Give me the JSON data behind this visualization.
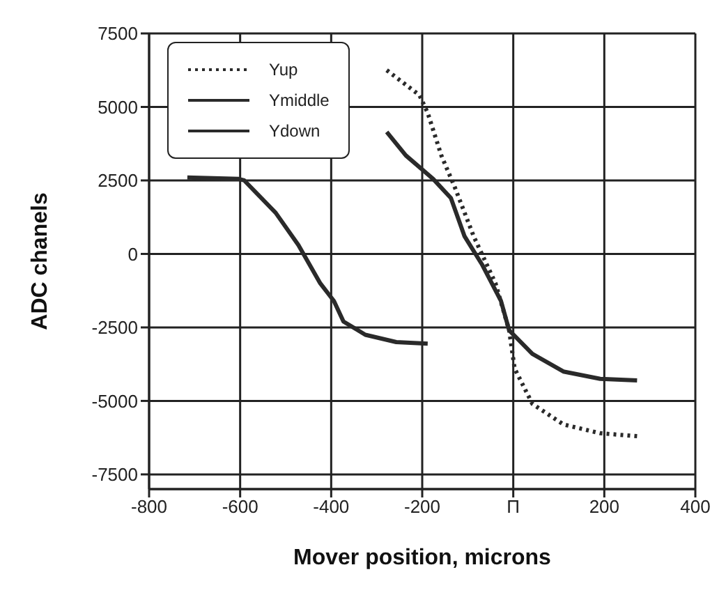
{
  "chart_data": {
    "type": "line",
    "xlabel": "Mover position, microns",
    "ylabel": "ADC chanels",
    "xlim": [
      -800,
      400
    ],
    "xticks": [
      -800,
      -600,
      -400,
      -200,
      {
        "value": 0,
        "label": "П"
      },
      200,
      400
    ],
    "ylim": [
      -8000,
      7500
    ],
    "yticks": [
      7500,
      5000,
      2500,
      0,
      -2500,
      -5000,
      -7500
    ],
    "grid": true,
    "legend": "top left",
    "marker": "none",
    "series": [
      {
        "name": "Yup",
        "color": "#2a2a2a",
        "line_style": "dotted",
        "x": [
          -278,
          -206,
          -188,
          -158,
          -128,
          -87,
          -39,
          -9,
          3,
          42,
          110,
          191,
          272
        ],
        "values": [
          6250,
          5400,
          4800,
          3350,
          2250,
          600,
          -1000,
          -2600,
          -3900,
          -5100,
          -5800,
          -6100,
          -6200
        ]
      },
      {
        "name": "Ymiddle",
        "color": "#2a2a2a",
        "line_style": "solid",
        "x": [
          -716,
          -603,
          -591,
          -522,
          -472,
          -424,
          -394,
          -373,
          -325,
          -257,
          -188
        ],
        "values": [
          2600,
          2550,
          2500,
          1400,
          300,
          -1000,
          -1600,
          -2300,
          -2750,
          -3000,
          -3050
        ]
      },
      {
        "name": "Ydown",
        "color": "#2a2a2a",
        "line_style": "solid",
        "x": [
          -278,
          -236,
          -176,
          -137,
          -107,
          -69,
          -27,
          -9,
          42,
          110,
          191,
          272
        ],
        "values": [
          4150,
          3350,
          2550,
          1900,
          600,
          -350,
          -1600,
          -2600,
          -3400,
          -4000,
          -4250,
          -4300
        ]
      }
    ]
  }
}
